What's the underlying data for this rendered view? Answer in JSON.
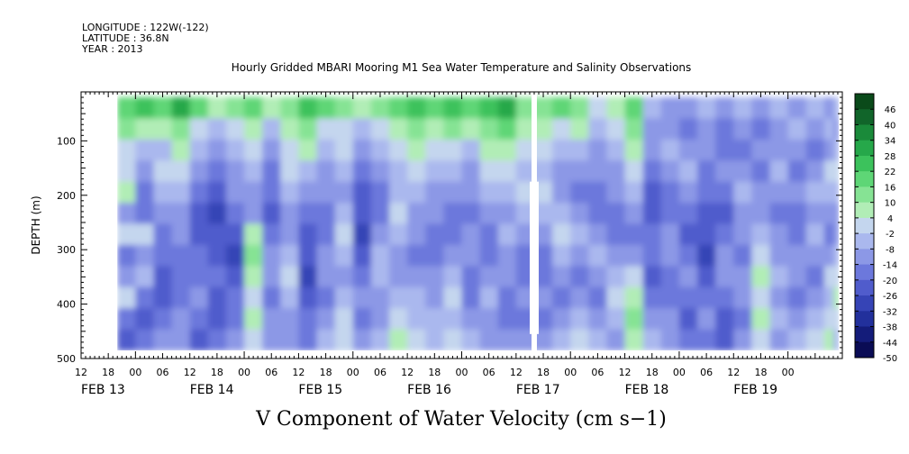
{
  "header": {
    "longitude": "LONGITUDE : 122W(-122)",
    "latitude": "LATITUDE : 36.8N",
    "year": "YEAR : 2013",
    "title": "Hourly Gridded MBARI Mooring M1 Sea Water Temperature and Salinity Observations"
  },
  "chart_data": {
    "type": "heatmap",
    "title": "Hourly Gridded MBARI Mooring M1 Sea Water Temperature and Salinity Observations",
    "xlabel": "V Component of Water Velocity (cm s−1)",
    "ylabel": "DEPTH (m)",
    "x_hour_ticks": [
      "12",
      "18",
      "00",
      "06",
      "12",
      "18",
      "00",
      "06",
      "12",
      "18",
      "00",
      "06",
      "12",
      "18",
      "00",
      "06",
      "12",
      "18",
      "00",
      "06",
      "12",
      "18",
      "00",
      "06",
      "12",
      "18",
      "00"
    ],
    "x_date_labels": [
      "FEB 13",
      "FEB 14",
      "FEB 15",
      "FEB 16",
      "FEB 17",
      "FEB 18",
      "FEB 19"
    ],
    "x_range_hours": [
      -12,
      156
    ],
    "y_ticks": [
      100,
      200,
      300,
      400,
      500
    ],
    "y_tick_labels": [
      "100",
      "200",
      "300",
      "400",
      "500"
    ],
    "ylim": [
      500,
      10
    ],
    "data_depth_range": [
      20,
      485
    ],
    "data_start_hour": -4,
    "gap_hour": 88,
    "colorbar": {
      "levels": [
        48,
        46,
        40,
        34,
        28,
        22,
        16,
        10,
        4,
        -2,
        -8,
        -14,
        -20,
        -26,
        -32,
        -38,
        -44,
        -50
      ],
      "tick_labels": [
        "46",
        "40",
        "34",
        "28",
        "22",
        "16",
        "10",
        "4",
        "-2",
        "-8",
        "-14",
        "-20",
        "-26",
        "-32",
        "-38",
        "-44",
        "-50"
      ],
      "colors": [
        "#0a4a1a",
        "#11652a",
        "#1a8a3a",
        "#26a84a",
        "#3cc25c",
        "#5ed676",
        "#86e394",
        "#b1edb6",
        "#c4d6ee",
        "#aab8ee",
        "#8c98e6",
        "#6c78dc",
        "#505ccc",
        "#3644b6",
        "#22309c",
        "#141c7a",
        "#0a0c55"
      ]
    },
    "columns": [
      {
        "hour": -4,
        "values": [
          22,
          16,
          4,
          4,
          10,
          -8,
          4,
          -14,
          -8,
          4,
          -14,
          -20
        ]
      },
      {
        "hour": 0,
        "values": [
          28,
          10,
          -2,
          -8,
          -14,
          -14,
          4,
          -8,
          -2,
          -14,
          -20,
          -14
        ]
      },
      {
        "hour": 4,
        "values": [
          22,
          10,
          -2,
          4,
          -2,
          -8,
          -14,
          -14,
          -20,
          -20,
          -14,
          -8
        ]
      },
      {
        "hour": 8,
        "values": [
          34,
          16,
          10,
          4,
          -2,
          -8,
          -8,
          -14,
          -14,
          -14,
          -8,
          -8
        ]
      },
      {
        "hour": 12,
        "values": [
          22,
          4,
          -2,
          -8,
          -14,
          -20,
          -20,
          -14,
          -14,
          -8,
          -14,
          -20
        ]
      },
      {
        "hour": 16,
        "values": [
          10,
          -2,
          -8,
          -14,
          -20,
          -26,
          -20,
          -20,
          -14,
          -20,
          -20,
          -14
        ]
      },
      {
        "hour": 20,
        "values": [
          16,
          4,
          -2,
          -8,
          -8,
          -14,
          -20,
          -26,
          -20,
          -14,
          -14,
          -8
        ]
      },
      {
        "hour": 24,
        "values": [
          22,
          10,
          4,
          -2,
          -8,
          -8,
          10,
          16,
          10,
          4,
          10,
          4
        ]
      },
      {
        "hour": 28,
        "values": [
          10,
          -2,
          -8,
          -14,
          -14,
          -20,
          -14,
          -8,
          -8,
          -14,
          -8,
          -8
        ]
      },
      {
        "hour": 32,
        "values": [
          16,
          10,
          4,
          4,
          -2,
          -8,
          -8,
          -2,
          4,
          -2,
          -8,
          -8
        ]
      },
      {
        "hour": 36,
        "values": [
          28,
          16,
          10,
          -2,
          -8,
          -14,
          -20,
          -20,
          -26,
          -20,
          -14,
          -14
        ]
      },
      {
        "hour": 40,
        "values": [
          22,
          4,
          -2,
          -8,
          -8,
          -14,
          -14,
          -8,
          -8,
          -14,
          -8,
          -2
        ]
      },
      {
        "hour": 44,
        "values": [
          16,
          4,
          4,
          -2,
          -8,
          -2,
          4,
          -2,
          -8,
          -2,
          4,
          4
        ]
      },
      {
        "hour": 48,
        "values": [
          10,
          -2,
          -8,
          -14,
          -20,
          -20,
          -26,
          -20,
          -14,
          -8,
          -14,
          -8
        ]
      },
      {
        "hour": 52,
        "values": [
          16,
          4,
          -2,
          -8,
          -14,
          -14,
          -8,
          -2,
          -2,
          -8,
          -8,
          -2
        ]
      },
      {
        "hour": 56,
        "values": [
          22,
          10,
          4,
          -2,
          -2,
          4,
          -2,
          -8,
          -8,
          -2,
          4,
          10
        ]
      },
      {
        "hour": 60,
        "values": [
          28,
          16,
          10,
          4,
          -2,
          -8,
          -8,
          -14,
          -8,
          -2,
          -2,
          4
        ]
      },
      {
        "hour": 64,
        "values": [
          22,
          10,
          4,
          -2,
          -8,
          -8,
          -14,
          -14,
          -8,
          -8,
          -2,
          -2
        ]
      },
      {
        "hour": 68,
        "values": [
          28,
          16,
          4,
          -2,
          -8,
          -14,
          -14,
          -8,
          -2,
          4,
          -2,
          4
        ]
      },
      {
        "hour": 72,
        "values": [
          22,
          10,
          -2,
          -8,
          -8,
          -14,
          -8,
          -8,
          -14,
          -14,
          -8,
          -2
        ]
      },
      {
        "hour": 76,
        "values": [
          28,
          16,
          10,
          4,
          -2,
          -8,
          -14,
          -14,
          -8,
          -2,
          -8,
          -8
        ]
      },
      {
        "hour": 80,
        "values": [
          34,
          22,
          10,
          4,
          -2,
          -8,
          -2,
          -8,
          -8,
          -14,
          -14,
          -8
        ]
      },
      {
        "hour": 84,
        "values": [
          16,
          10,
          4,
          -2,
          4,
          -2,
          -8,
          -14,
          -14,
          -8,
          -14,
          -8
        ]
      },
      {
        "hour": 92,
        "values": [
          22,
          4,
          -2,
          -8,
          -8,
          -2,
          4,
          -2,
          -8,
          -14,
          -8,
          -2
        ]
      },
      {
        "hour": 96,
        "values": [
          16,
          10,
          -2,
          -8,
          -14,
          -8,
          -2,
          -8,
          -14,
          -8,
          -2,
          4
        ]
      },
      {
        "hour": 100,
        "values": [
          4,
          -2,
          -8,
          -8,
          -14,
          -14,
          -8,
          -2,
          -8,
          -14,
          -8,
          -2
        ]
      },
      {
        "hour": 104,
        "values": [
          10,
          4,
          -2,
          -8,
          -8,
          -14,
          -14,
          -8,
          -2,
          4,
          -2,
          -8
        ]
      },
      {
        "hour": 108,
        "values": [
          22,
          16,
          10,
          4,
          -2,
          -8,
          -14,
          -8,
          4,
          10,
          16,
          10
        ]
      },
      {
        "hour": 112,
        "values": [
          -2,
          -8,
          -8,
          -14,
          -20,
          -20,
          -14,
          -14,
          -20,
          -14,
          -8,
          -2
        ]
      },
      {
        "hour": 116,
        "values": [
          -8,
          -8,
          -2,
          -8,
          -14,
          -14,
          -8,
          -8,
          -14,
          -14,
          -8,
          -8
        ]
      },
      {
        "hour": 120,
        "values": [
          -8,
          -14,
          -8,
          -2,
          -8,
          -14,
          -20,
          -14,
          -8,
          -14,
          -20,
          -14
        ]
      },
      {
        "hour": 124,
        "values": [
          -2,
          -8,
          -8,
          -14,
          -14,
          -20,
          -20,
          -26,
          -20,
          -14,
          -8,
          -14
        ]
      },
      {
        "hour": 128,
        "values": [
          -8,
          -14,
          -14,
          -8,
          -14,
          -20,
          -14,
          -8,
          -8,
          -14,
          -20,
          -20
        ]
      },
      {
        "hour": 132,
        "values": [
          -2,
          -8,
          -14,
          -8,
          -2,
          -8,
          -8,
          -14,
          -8,
          -8,
          -14,
          -8
        ]
      },
      {
        "hour": 136,
        "values": [
          -8,
          -14,
          -8,
          -14,
          -8,
          -8,
          -2,
          4,
          10,
          4,
          10,
          4
        ]
      },
      {
        "hour": 140,
        "values": [
          -2,
          -8,
          -8,
          -2,
          -8,
          -14,
          -8,
          -8,
          -2,
          -8,
          -2,
          -8
        ]
      },
      {
        "hour": 144,
        "values": [
          -8,
          -2,
          -8,
          -14,
          -8,
          -14,
          -14,
          -8,
          -8,
          -14,
          -8,
          -2
        ]
      },
      {
        "hour": 148,
        "values": [
          -2,
          -8,
          -14,
          -8,
          -2,
          -8,
          -2,
          -8,
          -14,
          -8,
          -2,
          4
        ]
      },
      {
        "hour": 152,
        "values": [
          -8,
          -2,
          -8,
          4,
          -2,
          -8,
          -14,
          -8,
          4,
          -2,
          4,
          10
        ]
      },
      {
        "hour": 154,
        "values": [
          -2,
          -8,
          -2,
          4,
          -2,
          -8,
          -8,
          -2,
          4,
          10,
          4,
          -2
        ]
      }
    ]
  }
}
